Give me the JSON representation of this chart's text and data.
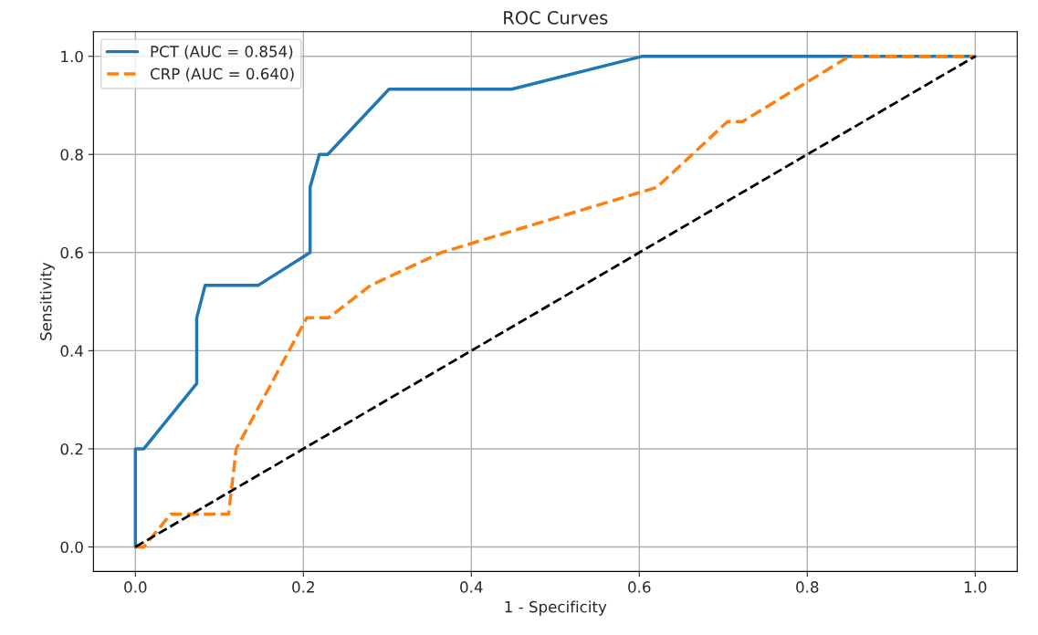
{
  "chart_data": {
    "type": "line",
    "title": "ROC Curves",
    "xlabel": "1 - Specificity",
    "ylabel": "Sensitivity",
    "xlim": [
      -0.05,
      1.05
    ],
    "ylim": [
      -0.05,
      1.05
    ],
    "xticks": [
      {
        "value": 0,
        "label": "0.0"
      },
      {
        "value": 0.2,
        "label": "0.2"
      },
      {
        "value": 0.4,
        "label": "0.4"
      },
      {
        "value": 0.6,
        "label": "0.6"
      },
      {
        "value": 0.8,
        "label": "0.8"
      },
      {
        "value": 1,
        "label": "1.0"
      }
    ],
    "yticks": [
      {
        "value": 0,
        "label": "0.0"
      },
      {
        "value": 0.2,
        "label": "0.2"
      },
      {
        "value": 0.4,
        "label": "0.4"
      },
      {
        "value": 0.6,
        "label": "0.6"
      },
      {
        "value": 0.8,
        "label": "0.8"
      },
      {
        "value": 1,
        "label": "1.0"
      }
    ],
    "grid": true,
    "legend": "top left",
    "series": [
      {
        "name": "PCT (AUC = 0.854)",
        "color": "#1f77b4",
        "line_style": "solid",
        "x": [
          0,
          0,
          0.01,
          0.073,
          0.073,
          0.083,
          0.146,
          0.208,
          0.208,
          0.219,
          0.229,
          0.302,
          0.448,
          0.604,
          1
        ],
        "values": [
          0,
          0.2,
          0.2,
          0.333,
          0.467,
          0.533,
          0.533,
          0.6,
          0.733,
          0.8,
          0.8,
          0.933,
          0.933,
          1,
          1
        ]
      },
      {
        "name": "CRP (AUC = 0.640)",
        "color": "#ff7f0e",
        "line_style": "dashed",
        "x": [
          0,
          0.01,
          0.042,
          0.052,
          0.111,
          0.12,
          0.204,
          0.23,
          0.28,
          0.364,
          0.621,
          0.705,
          0.723,
          0.85,
          1
        ],
        "values": [
          0,
          0,
          0.067,
          0.067,
          0.067,
          0.2,
          0.467,
          0.467,
          0.533,
          0.6,
          0.733,
          0.867,
          0.867,
          1,
          1
        ]
      },
      {
        "color": "#000000",
        "line_style": "dashed",
        "x": [
          0,
          1
        ],
        "values": [
          0,
          1
        ]
      }
    ]
  }
}
